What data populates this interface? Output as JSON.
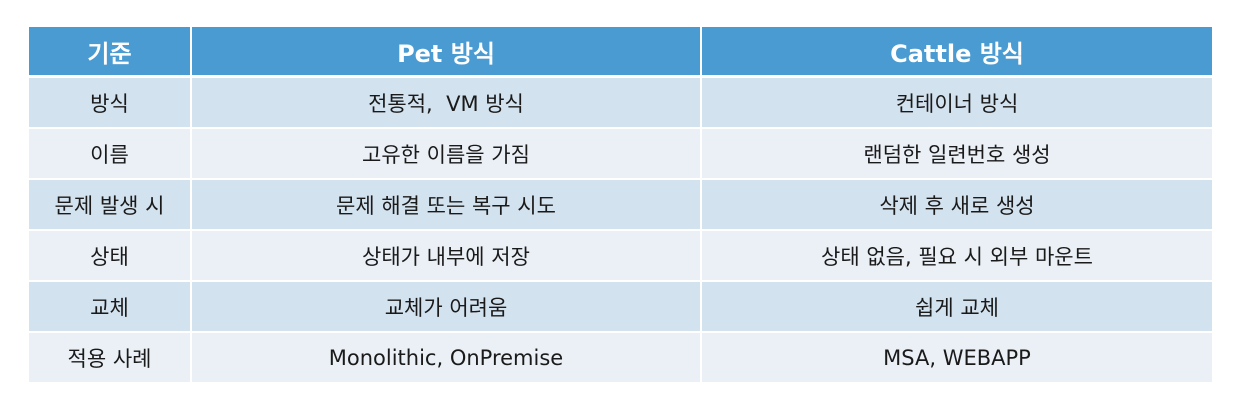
{
  "table": {
    "headers": [
      "기준",
      "Pet 방식",
      "Cattle 방식"
    ],
    "rows": [
      [
        "방식",
        "전통적,  VM 방식",
        "컨테이너 방식"
      ],
      [
        "이름",
        "고유한 이름을 가짐",
        "랜덤한 일련번호 생성"
      ],
      [
        "문제 발생 시",
        "문제 해결 또는 복구 시도",
        "삭제 후 새로 생성"
      ],
      [
        "상태",
        "상태가 내부에 저장",
        "상태 없음, 필요 시 외부 마운트"
      ],
      [
        "교체",
        "교체가 어려움",
        "쉽게 교체"
      ],
      [
        "적용 사례",
        "Monolithic, OnPremise",
        "MSA, WEBAPP"
      ]
    ]
  },
  "colors": {
    "header_bg": "#4a9bd2",
    "row_odd_bg": "#d3e2ef",
    "row_even_bg": "#eaf0f6"
  }
}
